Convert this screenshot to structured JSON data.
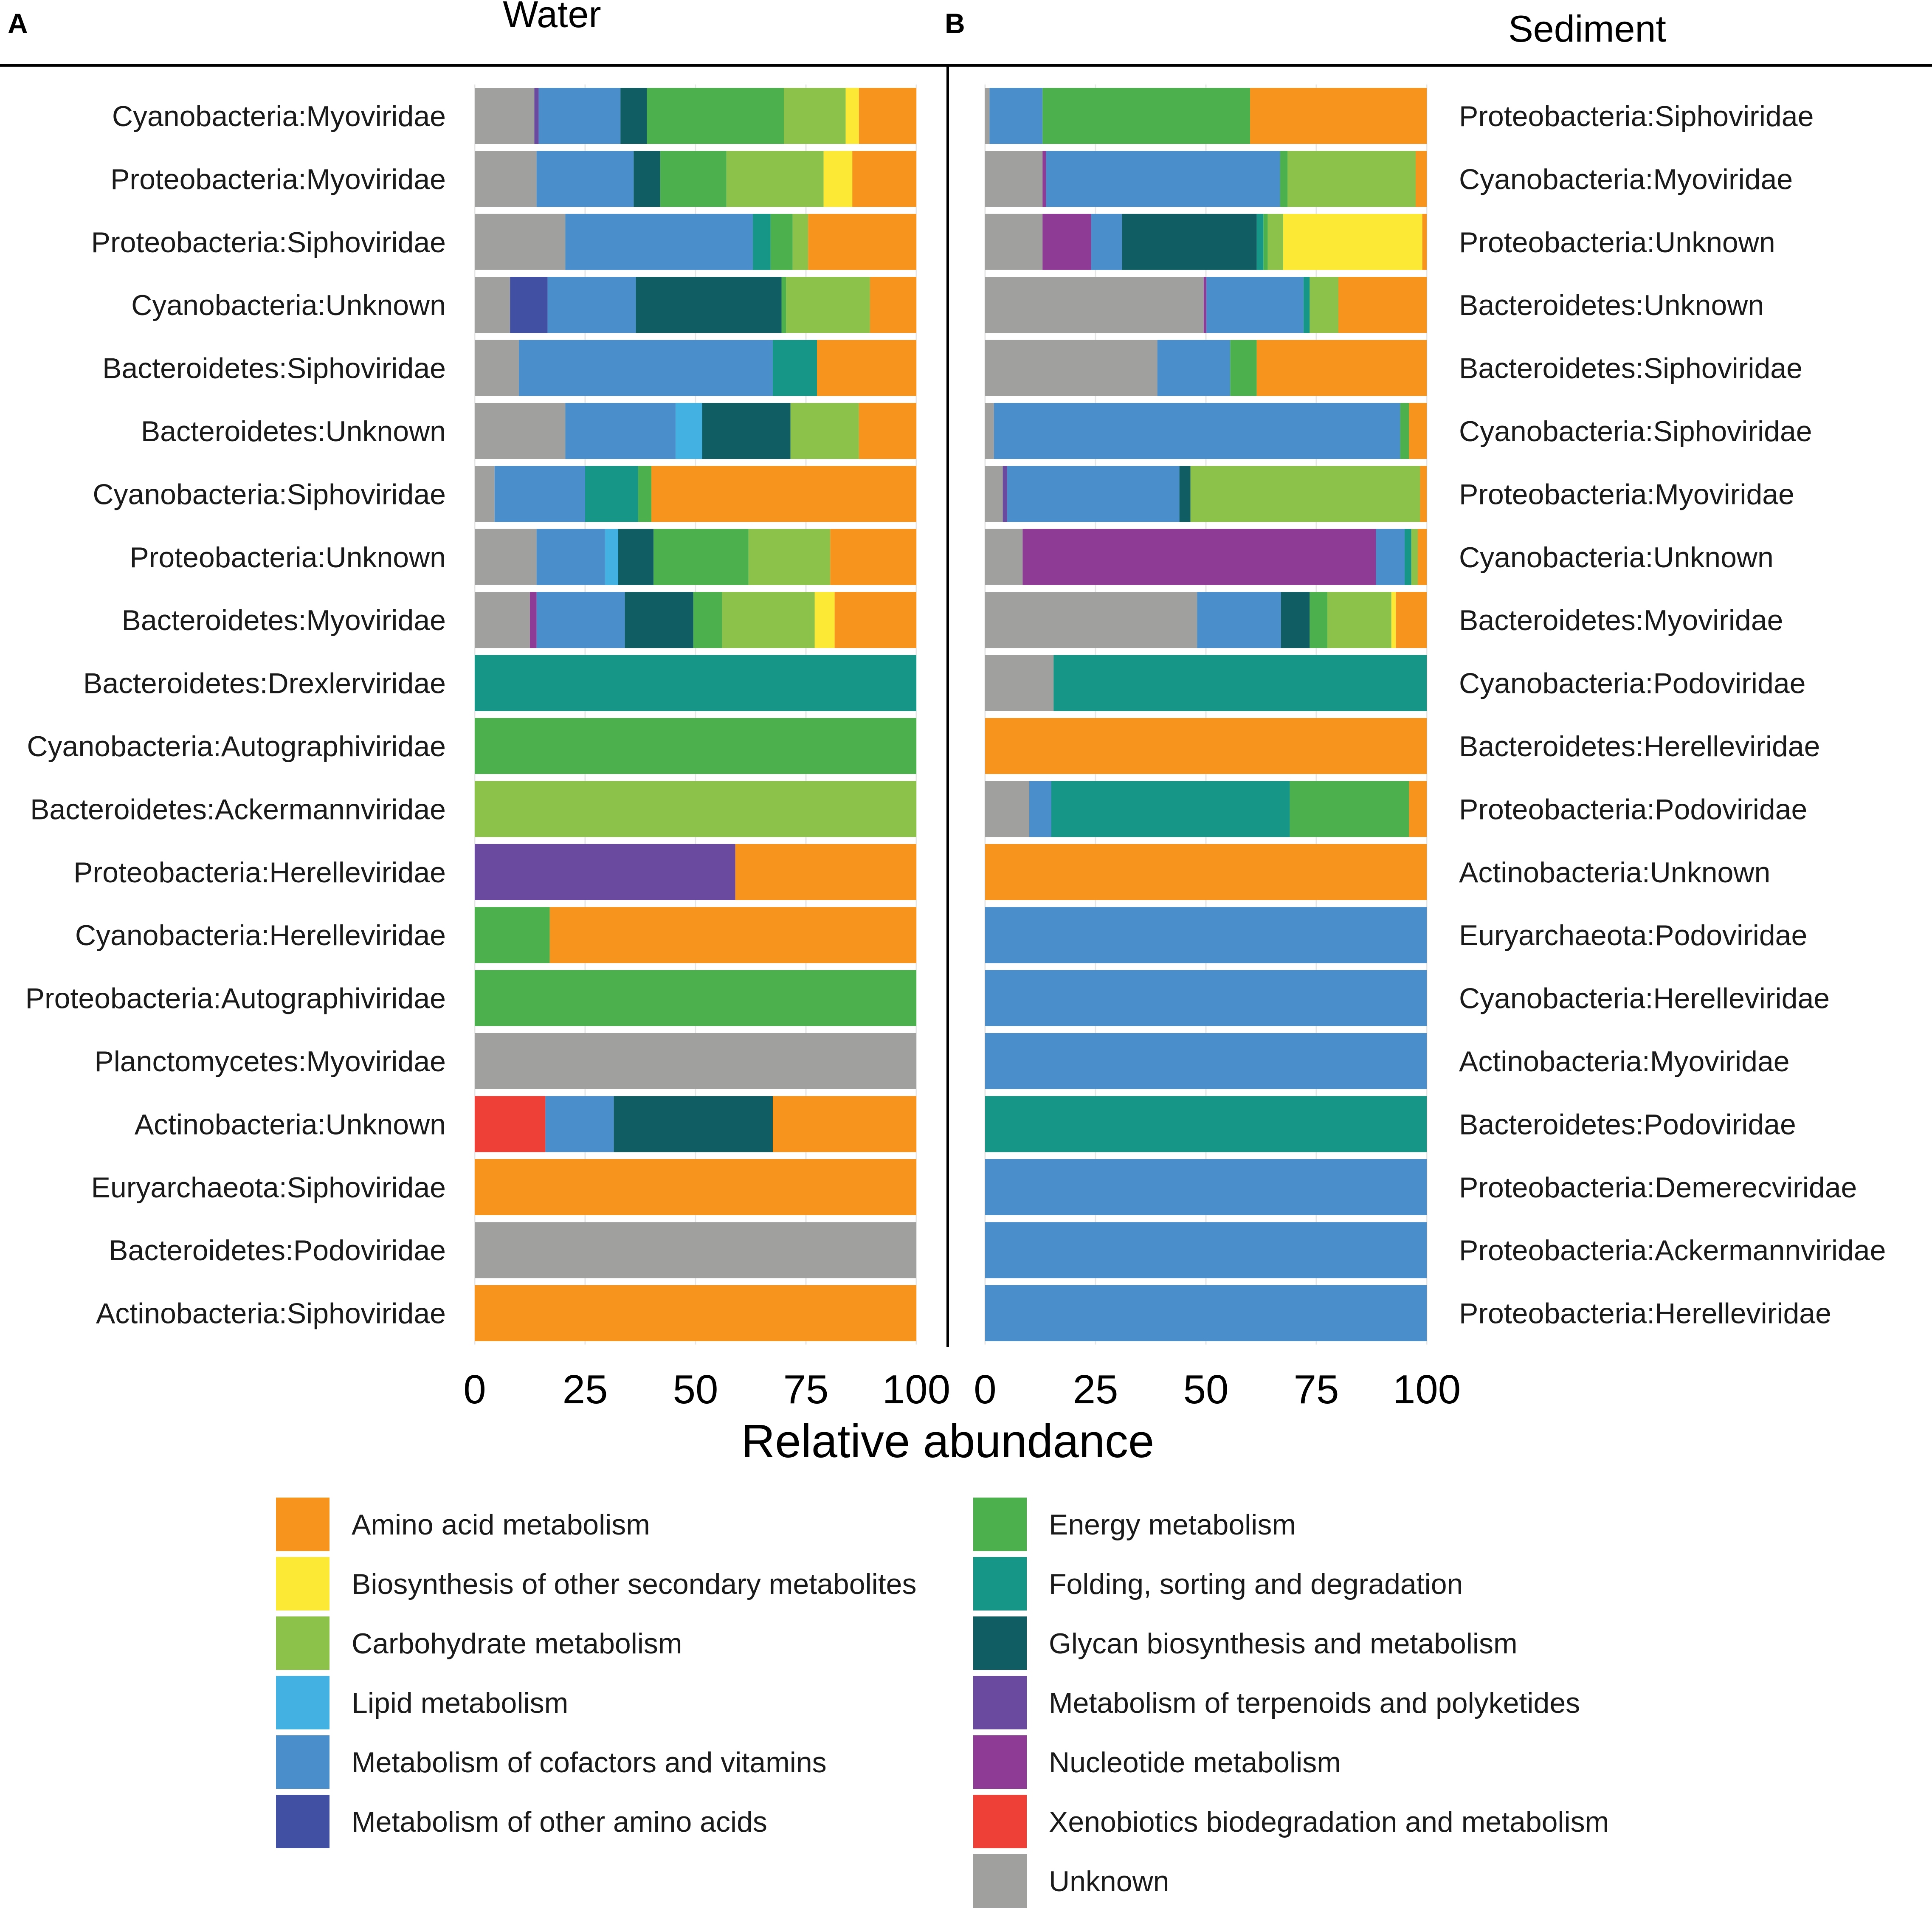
{
  "figure": {
    "panel_a_letter": "A",
    "panel_b_letter": "B",
    "shared_xlabel": "Relative abundance"
  },
  "categories": [
    {
      "key": "amino",
      "name": "Amino acid metabolism",
      "color": "#F7941D"
    },
    {
      "key": "biosec",
      "name": "Biosynthesis of other secondary metabolites",
      "color": "#FCE935"
    },
    {
      "key": "carb",
      "name": "Carbohydrate metabolism",
      "color": "#8CC24A"
    },
    {
      "key": "lipid",
      "name": "Lipid metabolism",
      "color": "#44B1E3"
    },
    {
      "key": "cofac",
      "name": "Metabolism of cofactors and vitamins",
      "color": "#4A8FCC"
    },
    {
      "key": "otheraa",
      "name": "Metabolism of other amino acids",
      "color": "#4150A3"
    },
    {
      "key": "energy",
      "name": "Energy metabolism",
      "color": "#4CB04C"
    },
    {
      "key": "fold",
      "name": "Folding, sorting and degradation",
      "color": "#159686"
    },
    {
      "key": "glycan",
      "name": "Glycan biosynthesis and metabolism",
      "color": "#105E63"
    },
    {
      "key": "terp",
      "name": "Metabolism of terpenoids and polyketides",
      "color": "#6A4A9E"
    },
    {
      "key": "nucl",
      "name": "Nucleotide metabolism",
      "color": "#8E3B96"
    },
    {
      "key": "xeno",
      "name": "Xenobiotics biodegradation and metabolism",
      "color": "#EE4037"
    },
    {
      "key": "unknown",
      "name": "Unknown",
      "color": "#A0A09F"
    }
  ],
  "chart_data": [
    {
      "type": "bar",
      "orientation": "horizontal",
      "stacked": true,
      "panel": "A",
      "title": "Water",
      "xlabel": "Relative abundance",
      "xlim": [
        0,
        100
      ],
      "xticks": [
        0,
        25,
        50,
        75,
        100
      ],
      "label_side": "left",
      "bars": [
        {
          "label": "Cyanobacteria:Myoviridae",
          "segments": [
            [
              "unknown",
              13.5
            ],
            [
              "terp",
              1
            ],
            [
              "cofac",
              18.5
            ],
            [
              "glycan",
              6
            ],
            [
              "energy",
              31
            ],
            [
              "carb",
              14
            ],
            [
              "biosec",
              3
            ],
            [
              "amino",
              13
            ]
          ]
        },
        {
          "label": "Proteobacteria:Myoviridae",
          "segments": [
            [
              "unknown",
              14
            ],
            [
              "cofac",
              22
            ],
            [
              "glycan",
              6
            ],
            [
              "energy",
              15
            ],
            [
              "carb",
              22
            ],
            [
              "biosec",
              6.5
            ],
            [
              "amino",
              14.5
            ]
          ]
        },
        {
          "label": "Proteobacteria:Siphoviridae",
          "segments": [
            [
              "unknown",
              20.5
            ],
            [
              "cofac",
              42.5
            ],
            [
              "fold",
              4
            ],
            [
              "energy",
              5
            ],
            [
              "carb",
              3.5
            ],
            [
              "amino",
              24.5
            ]
          ]
        },
        {
          "label": "Cyanobacteria:Unknown",
          "segments": [
            [
              "unknown",
              8
            ],
            [
              "otheraa",
              8.5
            ],
            [
              "cofac",
              20
            ],
            [
              "glycan",
              33
            ],
            [
              "energy",
              1
            ],
            [
              "carb",
              19
            ],
            [
              "amino",
              10.5
            ]
          ]
        },
        {
          "label": "Bacteroidetes:Siphoviridae",
          "segments": [
            [
              "unknown",
              10
            ],
            [
              "cofac",
              57.5
            ],
            [
              "fold",
              10
            ],
            [
              "amino",
              22.5
            ]
          ]
        },
        {
          "label": "Bacteroidetes:Unknown",
          "segments": [
            [
              "unknown",
              20.5
            ],
            [
              "cofac",
              25
            ],
            [
              "lipid",
              6
            ],
            [
              "glycan",
              20
            ],
            [
              "carb",
              15.5
            ],
            [
              "amino",
              13
            ]
          ]
        },
        {
          "label": "Cyanobacteria:Siphoviridae",
          "segments": [
            [
              "unknown",
              4.5
            ],
            [
              "cofac",
              20.5
            ],
            [
              "fold",
              12
            ],
            [
              "energy",
              3
            ],
            [
              "amino",
              60
            ]
          ]
        },
        {
          "label": "Proteobacteria:Unknown",
          "segments": [
            [
              "unknown",
              14
            ],
            [
              "cofac",
              15.5
            ],
            [
              "lipid",
              3
            ],
            [
              "glycan",
              8
            ],
            [
              "energy",
              21.5
            ],
            [
              "carb",
              18.5
            ],
            [
              "amino",
              19.5
            ]
          ]
        },
        {
          "label": "Bacteroidetes:Myoviridae",
          "segments": [
            [
              "unknown",
              12.5
            ],
            [
              "nucl",
              1.5
            ],
            [
              "cofac",
              20
            ],
            [
              "glycan",
              15.5
            ],
            [
              "energy",
              6.5
            ],
            [
              "carb",
              21
            ],
            [
              "biosec",
              4.5
            ],
            [
              "amino",
              18.5
            ]
          ]
        },
        {
          "label": "Bacteroidetes:Drexlerviridae",
          "segments": [
            [
              "fold",
              100
            ]
          ]
        },
        {
          "label": "Cyanobacteria:Autographiviridae",
          "segments": [
            [
              "energy",
              100
            ]
          ]
        },
        {
          "label": "Bacteroidetes:Ackermannviridae",
          "segments": [
            [
              "carb",
              100
            ]
          ]
        },
        {
          "label": "Proteobacteria:Herelleviridae",
          "segments": [
            [
              "terp",
              59
            ],
            [
              "amino",
              41
            ]
          ]
        },
        {
          "label": "Cyanobacteria:Herelleviridae",
          "segments": [
            [
              "energy",
              17
            ],
            [
              "amino",
              83
            ]
          ]
        },
        {
          "label": "Proteobacteria:Autographiviridae",
          "segments": [
            [
              "energy",
              100
            ]
          ]
        },
        {
          "label": "Planctomycetes:Myoviridae",
          "segments": [
            [
              "unknown",
              100
            ]
          ]
        },
        {
          "label": "Actinobacteria:Unknown",
          "segments": [
            [
              "xeno",
              16
            ],
            [
              "cofac",
              15.5
            ],
            [
              "glycan",
              36
            ],
            [
              "amino",
              32.5
            ]
          ]
        },
        {
          "label": "Euryarchaeota:Siphoviridae",
          "segments": [
            [
              "amino",
              100
            ]
          ]
        },
        {
          "label": "Bacteroidetes:Podoviridae",
          "segments": [
            [
              "unknown",
              100
            ]
          ]
        },
        {
          "label": "Actinobacteria:Siphoviridae",
          "segments": [
            [
              "amino",
              100
            ]
          ]
        }
      ]
    },
    {
      "type": "bar",
      "orientation": "horizontal",
      "stacked": true,
      "panel": "B",
      "title": "Sediment",
      "xlabel": "Relative abundance",
      "xlim": [
        0,
        100
      ],
      "xticks": [
        0,
        25,
        50,
        75,
        100
      ],
      "label_side": "right",
      "bars": [
        {
          "label": "Proteobacteria:Siphoviridae",
          "segments": [
            [
              "unknown",
              1
            ],
            [
              "cofac",
              12
            ],
            [
              "energy",
              47
            ],
            [
              "amino",
              40
            ]
          ]
        },
        {
          "label": "Cyanobacteria:Myoviridae",
          "segments": [
            [
              "unknown",
              13
            ],
            [
              "nucl",
              0.8
            ],
            [
              "cofac",
              53
            ],
            [
              "energy",
              1.7
            ],
            [
              "carb",
              29
            ],
            [
              "amino",
              2.5
            ]
          ]
        },
        {
          "label": "Proteobacteria:Unknown",
          "segments": [
            [
              "unknown",
              13
            ],
            [
              "nucl",
              11
            ],
            [
              "cofac",
              7
            ],
            [
              "glycan",
              30.5
            ],
            [
              "fold",
              1.5
            ],
            [
              "energy",
              1
            ],
            [
              "carb",
              3.5
            ],
            [
              "biosec",
              31.5
            ],
            [
              "amino",
              1
            ]
          ]
        },
        {
          "label": "Bacteroidetes:Unknown",
          "segments": [
            [
              "unknown",
              49.5
            ],
            [
              "nucl",
              0.6
            ],
            [
              "cofac",
              22
            ],
            [
              "fold",
              1.4
            ],
            [
              "carb",
              6.5
            ],
            [
              "amino",
              20
            ]
          ]
        },
        {
          "label": "Bacteroidetes:Siphoviridae",
          "segments": [
            [
              "unknown",
              39
            ],
            [
              "cofac",
              16.5
            ],
            [
              "energy",
              6
            ],
            [
              "amino",
              38.5
            ]
          ]
        },
        {
          "label": "Cyanobacteria:Siphoviridae",
          "segments": [
            [
              "unknown",
              2
            ],
            [
              "cofac",
              92
            ],
            [
              "energy",
              2
            ],
            [
              "amino",
              4
            ]
          ]
        },
        {
          "label": "Proteobacteria:Myoviridae",
          "segments": [
            [
              "unknown",
              4
            ],
            [
              "terp",
              1
            ],
            [
              "cofac",
              39
            ],
            [
              "glycan",
              2.5
            ],
            [
              "carb",
              52
            ],
            [
              "amino",
              1.5
            ]
          ]
        },
        {
          "label": "Cyanobacteria:Unknown",
          "segments": [
            [
              "unknown",
              8.5
            ],
            [
              "nucl",
              80
            ],
            [
              "cofac",
              6.5
            ],
            [
              "fold",
              1.5
            ],
            [
              "carb",
              1.5
            ],
            [
              "amino",
              2
            ]
          ]
        },
        {
          "label": "Bacteroidetes:Myoviridae",
          "segments": [
            [
              "unknown",
              48
            ],
            [
              "cofac",
              19
            ],
            [
              "glycan",
              6.5
            ],
            [
              "energy",
              4
            ],
            [
              "carb",
              14.5
            ],
            [
              "biosec",
              1
            ],
            [
              "amino",
              7
            ]
          ]
        },
        {
          "label": "Cyanobacteria:Podoviridae",
          "segments": [
            [
              "unknown",
              15.5
            ],
            [
              "fold",
              84.5
            ]
          ]
        },
        {
          "label": "Bacteroidetes:Herelleviridae",
          "segments": [
            [
              "amino",
              100
            ]
          ]
        },
        {
          "label": "Proteobacteria:Podoviridae",
          "segments": [
            [
              "unknown",
              10
            ],
            [
              "cofac",
              5
            ],
            [
              "fold",
              54
            ],
            [
              "energy",
              27
            ],
            [
              "amino",
              4
            ]
          ]
        },
        {
          "label": "Actinobacteria:Unknown",
          "segments": [
            [
              "amino",
              100
            ]
          ]
        },
        {
          "label": "Euryarchaeota:Podoviridae",
          "segments": [
            [
              "cofac",
              100
            ]
          ]
        },
        {
          "label": "Cyanobacteria:Herelleviridae",
          "segments": [
            [
              "cofac",
              100
            ]
          ]
        },
        {
          "label": "Actinobacteria:Myoviridae",
          "segments": [
            [
              "cofac",
              100
            ]
          ]
        },
        {
          "label": "Bacteroidetes:Podoviridae",
          "segments": [
            [
              "fold",
              100
            ]
          ]
        },
        {
          "label": "Proteobacteria:Demerecviridae",
          "segments": [
            [
              "cofac",
              100
            ]
          ]
        },
        {
          "label": "Proteobacteria:Ackermannviridae",
          "segments": [
            [
              "cofac",
              100
            ]
          ]
        },
        {
          "label": "Proteobacteria:Herelleviridae",
          "segments": [
            [
              "cofac",
              100
            ]
          ]
        }
      ]
    }
  ]
}
